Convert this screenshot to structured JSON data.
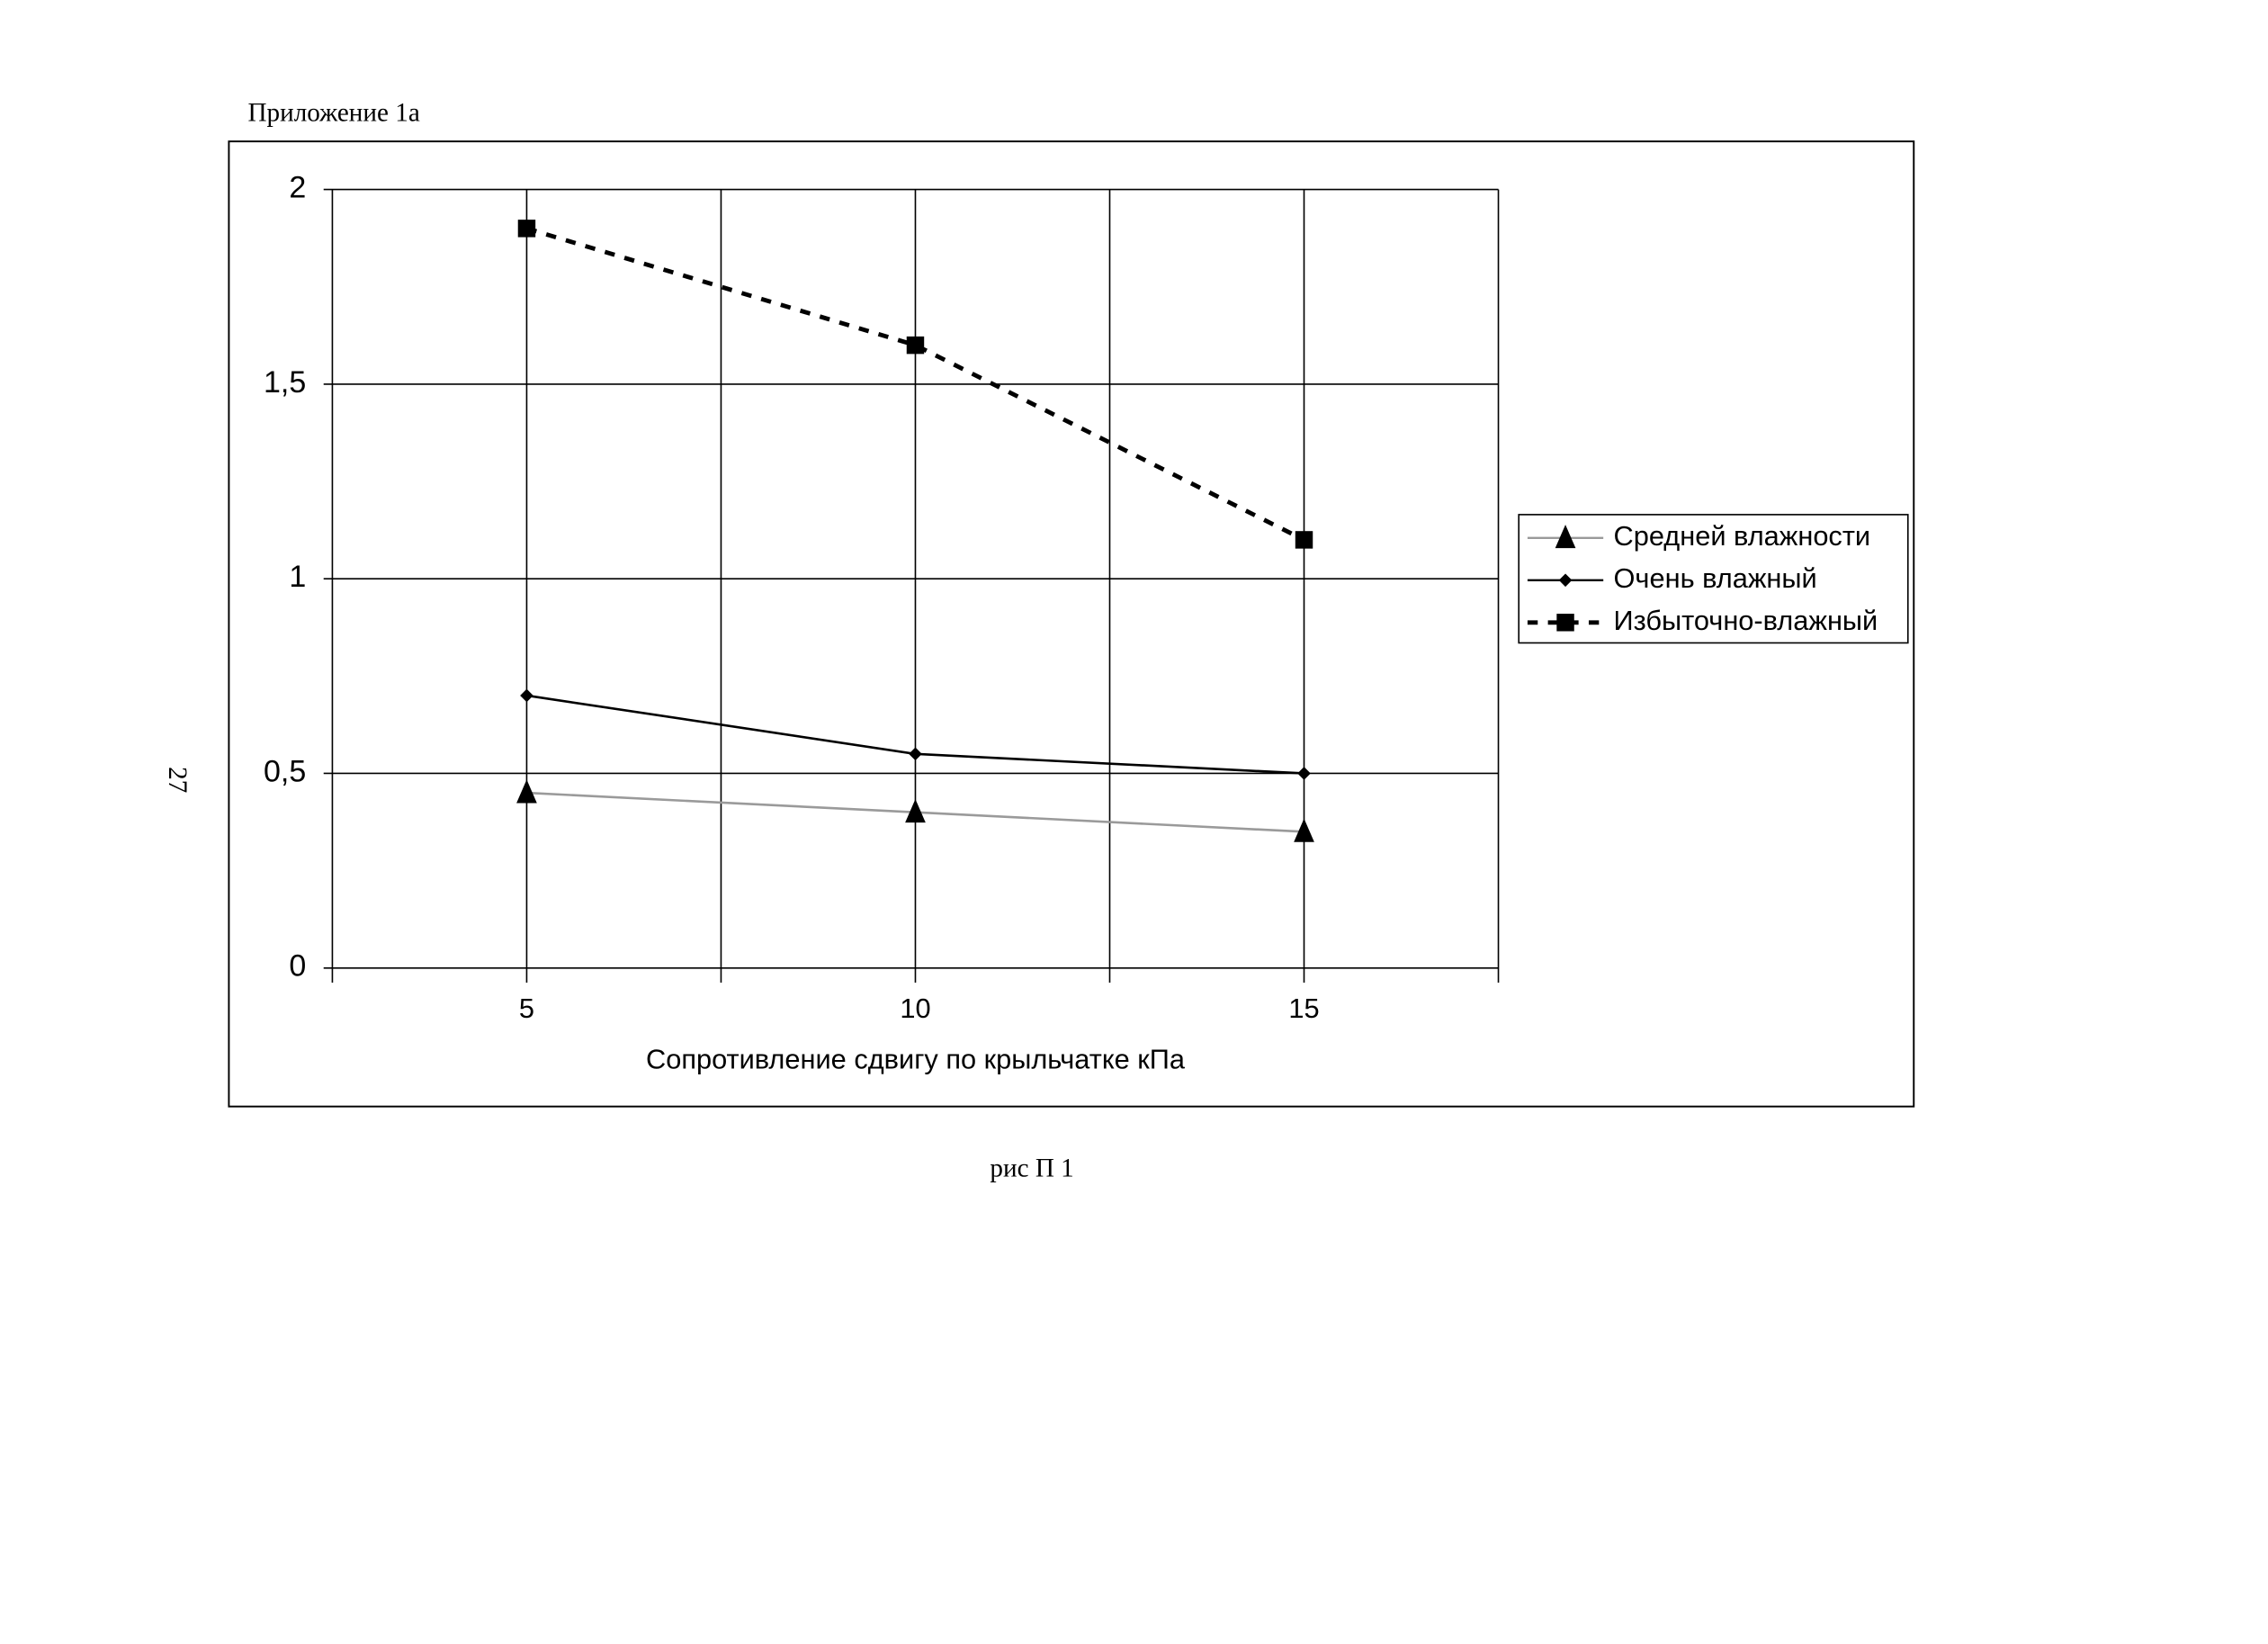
{
  "header": "Приложение 1а",
  "page_number": "27",
  "caption": "рис П 1",
  "chart_data": {
    "type": "line",
    "x_label": "Сопротивление сдвигу по крыльчатке  кПа",
    "x": [
      5,
      10,
      15
    ],
    "xlim": [
      2.5,
      17.5
    ],
    "xticks": [
      5,
      10,
      15
    ],
    "ylim": [
      0,
      2
    ],
    "yticks": [
      0,
      {
        "value": 0.5,
        "label": "0,5"
      },
      1,
      {
        "value": 1.5,
        "label": "1,5"
      },
      2
    ],
    "grid": true,
    "legend": "right",
    "series": [
      {
        "name": "Средней влажности",
        "color": "#000000",
        "line_color": "#9a9a9a",
        "marker": "triangle",
        "dashed": false,
        "values": [
          0.45,
          0.4,
          0.35
        ]
      },
      {
        "name": "Очень влажный",
        "color": "#000000",
        "line_color": "#000000",
        "marker": "diamond",
        "dashed": false,
        "values": [
          0.7,
          0.55,
          0.5
        ]
      },
      {
        "name": "Избыточно-влажный",
        "color": "#000000",
        "line_color": "#000000",
        "marker": "square",
        "dashed": true,
        "values": [
          1.9,
          1.6,
          1.1
        ]
      }
    ]
  }
}
